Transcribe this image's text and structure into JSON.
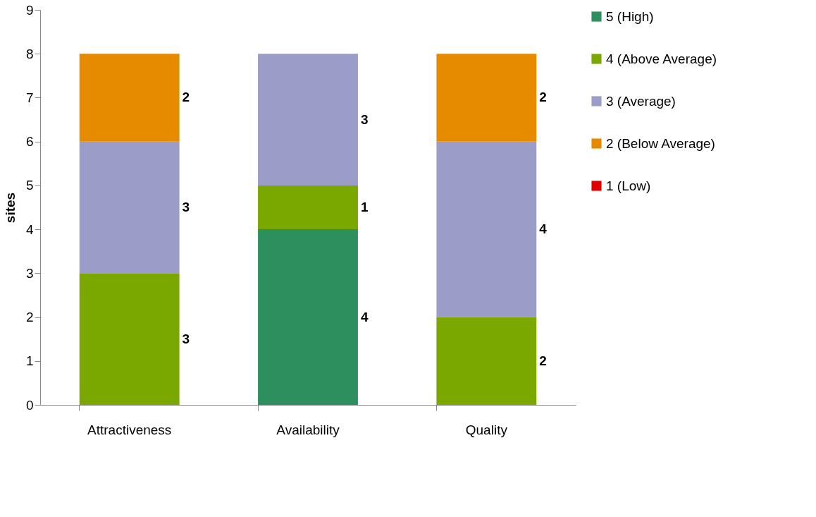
{
  "chart_data": {
    "type": "bar",
    "stacked": true,
    "ylabel": "sites",
    "categories": [
      "Attractiveness",
      "Availability",
      "Quality"
    ],
    "series": [
      {
        "name": "5 (High)",
        "color": "#2e8f5e",
        "values": [
          0,
          4,
          0
        ],
        "value_labels": [
          null,
          "4",
          null
        ]
      },
      {
        "name": "4 (Above Average)",
        "color": "#7aa800",
        "values": [
          3,
          1,
          2
        ],
        "value_labels": [
          "3",
          "1",
          "2"
        ]
      },
      {
        "name": "3 (Average)",
        "color": "#9c9cc8",
        "values": [
          3,
          3,
          4
        ],
        "value_labels": [
          "3",
          "3",
          "4"
        ]
      },
      {
        "name": "2 (Below Average)",
        "color": "#e68a00",
        "values": [
          2,
          0,
          2
        ],
        "value_labels": [
          "2",
          null,
          "2"
        ]
      },
      {
        "name": "1 (Low)",
        "color": "#e00000",
        "values": [
          0,
          0,
          0
        ],
        "value_labels": [
          null,
          null,
          null
        ]
      }
    ],
    "ylim": [
      0,
      9
    ],
    "yticks": [
      0,
      1,
      2,
      3,
      4,
      5,
      6,
      7,
      8,
      9
    ],
    "grid": false,
    "legend": "right"
  }
}
